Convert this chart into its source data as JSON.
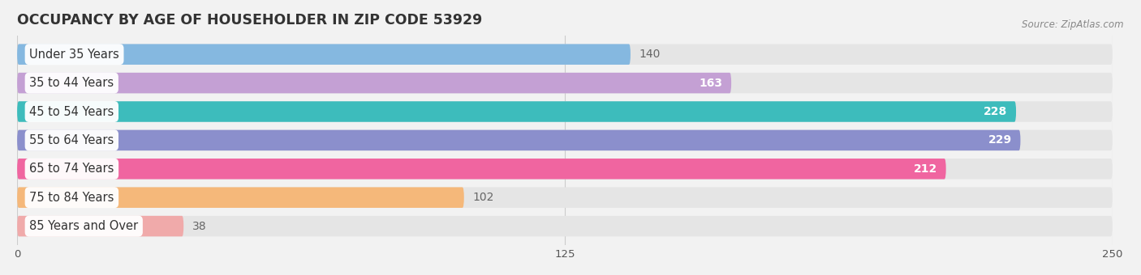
{
  "title": "OCCUPANCY BY AGE OF HOUSEHOLDER IN ZIP CODE 53929",
  "source": "Source: ZipAtlas.com",
  "categories": [
    "Under 35 Years",
    "35 to 44 Years",
    "45 to 54 Years",
    "55 to 64 Years",
    "65 to 74 Years",
    "75 to 84 Years",
    "85 Years and Over"
  ],
  "values": [
    140,
    163,
    228,
    229,
    212,
    102,
    38
  ],
  "bar_colors": [
    "#85b8e0",
    "#c4a0d4",
    "#3dbcbc",
    "#8b8fcc",
    "#f065a0",
    "#f5b87a",
    "#f0aaaa"
  ],
  "value_label_inside": [
    false,
    true,
    true,
    true,
    true,
    false,
    false
  ],
  "xlim_max": 250,
  "xticks": [
    0,
    125,
    250
  ],
  "background_color": "#f2f2f2",
  "bar_bg_color": "#e5e5e5",
  "title_fontsize": 12.5,
  "label_fontsize": 10.5,
  "value_fontsize": 10
}
